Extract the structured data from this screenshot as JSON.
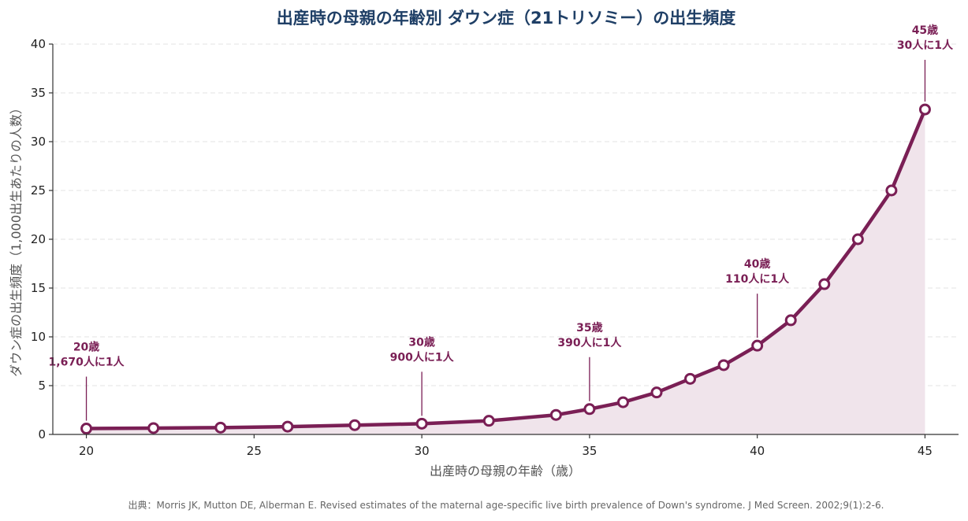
{
  "chart_data": {
    "type": "line",
    "title": "出産時の母親の年齢別 ダウン症（21トリソミー）の出生頻度",
    "xlabel": "出産時の母親の年齢（歳）",
    "ylabel": "ダウン症の出生頻度（1,000出生あたりの人数）",
    "xlim": [
      19,
      46
    ],
    "ylim": [
      0,
      40
    ],
    "x_ticks": [
      20,
      25,
      30,
      35,
      40,
      45
    ],
    "y_ticks": [
      0,
      5,
      10,
      15,
      20,
      25,
      30,
      35,
      40
    ],
    "grid": "horizontal dashed",
    "series": [
      {
        "color": "#7a1f55",
        "fill": "#f0e4eb",
        "x": [
          20,
          22,
          24,
          26,
          28,
          30,
          32,
          34,
          35,
          36,
          37,
          38,
          39,
          40,
          41,
          42,
          43,
          44,
          45
        ],
        "y": [
          0.6,
          0.65,
          0.7,
          0.8,
          0.95,
          1.1,
          1.4,
          2.0,
          2.6,
          3.3,
          4.3,
          5.7,
          7.1,
          9.1,
          11.7,
          15.4,
          20.0,
          25.0,
          33.3
        ]
      }
    ],
    "annotations": [
      {
        "x": 20,
        "y": 0.6,
        "line1": "20歳",
        "line2": "1,670人に1人"
      },
      {
        "x": 30,
        "y": 1.1,
        "line1": "30歳",
        "line2": "900人に1人"
      },
      {
        "x": 35,
        "y": 2.6,
        "line1": "35歳",
        "line2": "390人に1人"
      },
      {
        "x": 40,
        "y": 9.1,
        "line1": "40歳",
        "line2": "110人に1人"
      },
      {
        "x": 45,
        "y": 33.3,
        "line1": "45歳",
        "line2": "30人に1人"
      }
    ],
    "source": "出典：Morris JK, Mutton DE, Alberman E. Revised estimates of the maternal age-specific live birth prevalence of Down's syndrome. J Med Screen. 2002;9(1):2-6."
  }
}
